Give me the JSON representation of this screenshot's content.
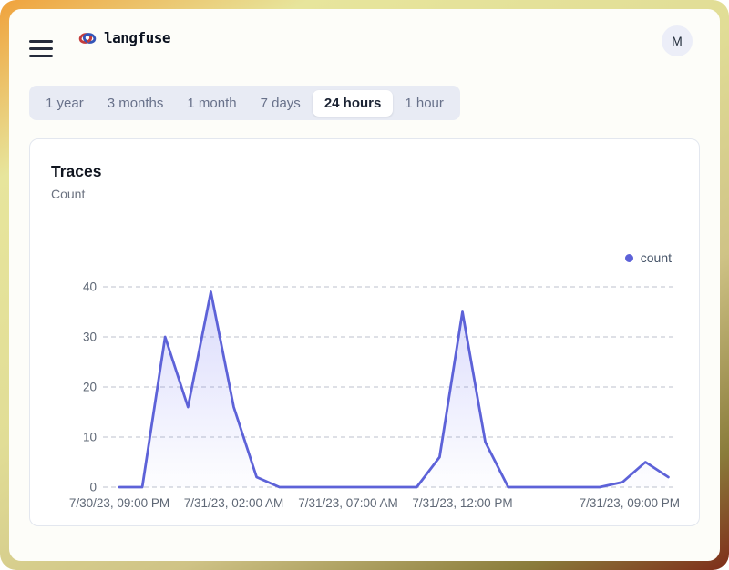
{
  "header": {
    "brand": "langfuse",
    "logo_icon": "knot-icon",
    "avatar_initial": "M"
  },
  "time_range_tabs": {
    "items": [
      {
        "label": "1 year",
        "selected": false
      },
      {
        "label": "3 months",
        "selected": false
      },
      {
        "label": "1 month",
        "selected": false
      },
      {
        "label": "7 days",
        "selected": false
      },
      {
        "label": "24 hours",
        "selected": true
      },
      {
        "label": "1 hour",
        "selected": false
      }
    ]
  },
  "traces_card": {
    "title": "Traces",
    "subtitle": "Count",
    "legend": [
      {
        "label": "count",
        "color": "#5d62d8"
      }
    ]
  },
  "chart_data": {
    "type": "area",
    "title": "Traces",
    "ylabel": "Count",
    "x": [
      "7/30/23, 09:00 PM",
      "7/30/23, 10:00 PM",
      "7/30/23, 11:00 PM",
      "7/31/23, 12:00 AM",
      "7/31/23, 01:00 AM",
      "7/31/23, 02:00 AM",
      "7/31/23, 03:00 AM",
      "7/31/23, 04:00 AM",
      "7/31/23, 05:00 AM",
      "7/31/23, 06:00 AM",
      "7/31/23, 07:00 AM",
      "7/31/23, 08:00 AM",
      "7/31/23, 09:00 AM",
      "7/31/23, 10:00 AM",
      "7/31/23, 11:00 AM",
      "7/31/23, 12:00 PM",
      "7/31/23, 01:00 PM",
      "7/31/23, 02:00 PM",
      "7/31/23, 03:00 PM",
      "7/31/23, 04:00 PM",
      "7/31/23, 05:00 PM",
      "7/31/23, 06:00 PM",
      "7/31/23, 07:00 PM",
      "7/31/23, 08:00 PM",
      "7/31/23, 09:00 PM"
    ],
    "series": [
      {
        "name": "count",
        "values": [
          0,
          0,
          30,
          16,
          39,
          16,
          2,
          0,
          0,
          0,
          0,
          0,
          0,
          0,
          6,
          35,
          9,
          0,
          0,
          0,
          0,
          0,
          1,
          5,
          2
        ]
      }
    ],
    "x_tick_indices": [
      0,
      5,
      10,
      15,
      24
    ],
    "x_tick_labels": [
      "7/30/23, 09:00 PM",
      "7/31/23, 02:00 AM",
      "7/31/23, 07:00 AM",
      "7/31/23, 12:00 PM",
      "7/31/23, 09:00 PM"
    ],
    "y_ticks": [
      0,
      10,
      20,
      30,
      40
    ],
    "ylim": [
      0,
      40
    ],
    "grid": "horizontal-dashed",
    "legend_position": "top-right",
    "line_color": "#5d62d8",
    "area_fill_color": "#6366f1",
    "grid_color": "#c9cdd6",
    "tick_label_color": "#5f6876"
  }
}
